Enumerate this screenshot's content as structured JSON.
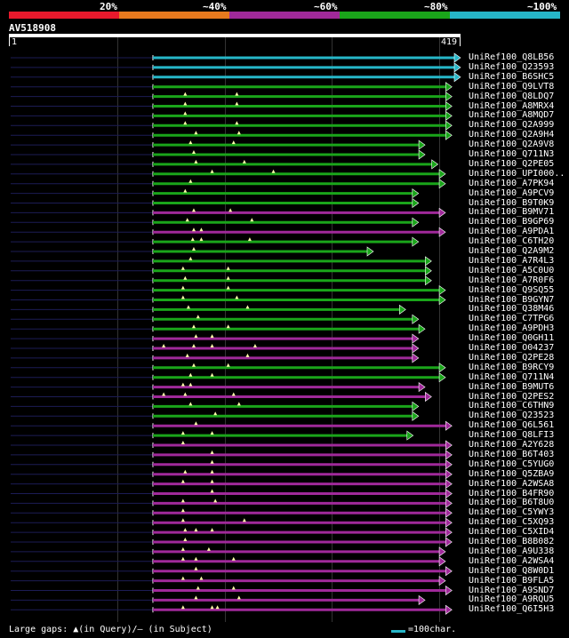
{
  "header": {
    "percent_labels": [
      "20%",
      "~40%",
      "~60%",
      "~80%",
      "~100%"
    ],
    "band_colors": [
      "#e8192c",
      "#e87a1e",
      "#a0299a",
      "#1aa51a",
      "#26b6c8"
    ]
  },
  "query": {
    "name": "AV518908",
    "start": "1",
    "end": "419",
    "length": 419
  },
  "colors": {
    "cyan": "#26b6c8",
    "green": "#1aa51a",
    "magenta": "#a0299a",
    "marker": "#ffffaa"
  },
  "hits": [
    {
      "name": "UniRef100_Q8LB56",
      "color": "cyan",
      "end": 419,
      "gaps": []
    },
    {
      "name": "UniRef100_Q23593",
      "color": "cyan",
      "end": 419,
      "gaps": []
    },
    {
      "name": "UniRef100_B6SHC5",
      "color": "cyan",
      "end": 419,
      "gaps": []
    },
    {
      "name": "UniRef100_Q9LVT8",
      "color": "green",
      "end": 411,
      "gaps": []
    },
    {
      "name": "UniRef100_Q8LDQ7",
      "color": "green",
      "end": 411,
      "gaps": [
        30,
        78
      ]
    },
    {
      "name": "UniRef100_A8MRX4",
      "color": "green",
      "end": 411,
      "gaps": [
        30,
        78
      ]
    },
    {
      "name": "UniRef100_A8MQD7",
      "color": "green",
      "end": 411,
      "gaps": [
        30
      ]
    },
    {
      "name": "UniRef100_Q2A999",
      "color": "green",
      "end": 411,
      "gaps": [
        30,
        78
      ]
    },
    {
      "name": "UniRef100_Q2A9H4",
      "color": "green",
      "end": 411,
      "gaps": [
        40,
        80
      ]
    },
    {
      "name": "UniRef100_Q2A9V8",
      "color": "green",
      "end": 386,
      "gaps": [
        35,
        75
      ]
    },
    {
      "name": "UniRef100_Q711N3",
      "color": "green",
      "end": 386,
      "gaps": [
        38
      ]
    },
    {
      "name": "UniRef100_Q2PE05",
      "color": "green",
      "end": 398,
      "gaps": [
        40,
        85
      ]
    },
    {
      "name": "UniRef100_UPI000..",
      "color": "green",
      "end": 405,
      "gaps": [
        55,
        112
      ]
    },
    {
      "name": "UniRef100_A7PK94",
      "color": "green",
      "end": 405,
      "gaps": [
        35
      ]
    },
    {
      "name": "UniRef100_A9PCV9",
      "color": "green",
      "end": 380,
      "gaps": [
        30
      ]
    },
    {
      "name": "UniRef100_B9T0K9",
      "color": "green",
      "end": 380,
      "gaps": []
    },
    {
      "name": "UniRef100_B9MV71",
      "color": "magenta",
      "end": 405,
      "gaps": [
        38,
        72
      ]
    },
    {
      "name": "UniRef100_B9GP69",
      "color": "green",
      "end": 380,
      "gaps": [
        32,
        92
      ]
    },
    {
      "name": "UniRef100_A9PDA1",
      "color": "magenta",
      "end": 405,
      "gaps": [
        38,
        45
      ]
    },
    {
      "name": "UniRef100_C6TH20",
      "color": "green",
      "end": 380,
      "gaps": [
        37,
        45,
        90
      ]
    },
    {
      "name": "UniRef100_Q2A9M2",
      "color": "green",
      "end": 338,
      "gaps": [
        38
      ]
    },
    {
      "name": "UniRef100_A7R4L3",
      "color": "green",
      "end": 392,
      "gaps": [
        35
      ]
    },
    {
      "name": "UniRef100_A5C0U0",
      "color": "green",
      "end": 392,
      "gaps": [
        28,
        70
      ]
    },
    {
      "name": "UniRef100_A7R0F6",
      "color": "green",
      "end": 392,
      "gaps": [
        30,
        70
      ]
    },
    {
      "name": "UniRef100_Q9SQ55",
      "color": "green",
      "end": 405,
      "gaps": [
        28,
        70
      ]
    },
    {
      "name": "UniRef100_B9GYN7",
      "color": "green",
      "end": 405,
      "gaps": [
        28,
        78
      ]
    },
    {
      "name": "UniRef100_Q38M46",
      "color": "green",
      "end": 368,
      "gaps": [
        33,
        88
      ]
    },
    {
      "name": "UniRef100_C7TPG6",
      "color": "green",
      "end": 380,
      "gaps": [
        42
      ]
    },
    {
      "name": "UniRef100_A9PDH3",
      "color": "green",
      "end": 386,
      "gaps": [
        38,
        70
      ]
    },
    {
      "name": "UniRef100_Q0GH11",
      "color": "magenta",
      "end": 380,
      "gaps": [
        40,
        55
      ]
    },
    {
      "name": "UniRef100_O04237",
      "color": "magenta",
      "end": 380,
      "gaps": [
        10,
        38,
        55,
        95
      ]
    },
    {
      "name": "UniRef100_Q2PE28",
      "color": "magenta",
      "end": 380,
      "gaps": [
        32,
        88
      ]
    },
    {
      "name": "UniRef100_B9RCY9",
      "color": "green",
      "end": 405,
      "gaps": [
        38,
        70
      ]
    },
    {
      "name": "UniRef100_Q711N4",
      "color": "green",
      "end": 405,
      "gaps": [
        35,
        55
      ]
    },
    {
      "name": "UniRef100_B9MUT6",
      "color": "magenta",
      "end": 386,
      "gaps": [
        28,
        35
      ]
    },
    {
      "name": "UniRef100_Q2PES2",
      "color": "magenta",
      "end": 392,
      "gaps": [
        10,
        30,
        75
      ]
    },
    {
      "name": "UniRef100_C6THN9",
      "color": "green",
      "end": 380,
      "gaps": [
        35,
        80
      ]
    },
    {
      "name": "UniRef100_Q23523",
      "color": "green",
      "end": 380,
      "gaps": [
        58
      ]
    },
    {
      "name": "UniRef100_Q6L561",
      "color": "magenta",
      "end": 411,
      "gaps": [
        40
      ]
    },
    {
      "name": "UniRef100_Q8LFI3",
      "color": "green",
      "end": 375,
      "gaps": [
        28,
        55
      ]
    },
    {
      "name": "UniRef100_A2Y628",
      "color": "magenta",
      "end": 411,
      "gaps": [
        28
      ]
    },
    {
      "name": "UniRef100_B6T403",
      "color": "magenta",
      "end": 411,
      "gaps": [
        55
      ]
    },
    {
      "name": "UniRef100_C5YUG0",
      "color": "magenta",
      "end": 411,
      "gaps": [
        55
      ]
    },
    {
      "name": "UniRef100_Q5ZBA9",
      "color": "magenta",
      "end": 411,
      "gaps": [
        30,
        55
      ]
    },
    {
      "name": "UniRef100_A2WSA8",
      "color": "magenta",
      "end": 411,
      "gaps": [
        28,
        55
      ]
    },
    {
      "name": "UniRef100_B4FR90",
      "color": "magenta",
      "end": 411,
      "gaps": [
        55
      ]
    },
    {
      "name": "UniRef100_B6T8U0",
      "color": "magenta",
      "end": 411,
      "gaps": [
        28,
        58
      ]
    },
    {
      "name": "UniRef100_C5YWY3",
      "color": "magenta",
      "end": 411,
      "gaps": [
        28
      ]
    },
    {
      "name": "UniRef100_C5XQ93",
      "color": "magenta",
      "end": 411,
      "gaps": [
        28,
        85
      ]
    },
    {
      "name": "UniRef100_C5XID4",
      "color": "magenta",
      "end": 411,
      "gaps": [
        30,
        40,
        55
      ]
    },
    {
      "name": "UniRef100_B8B082",
      "color": "magenta",
      "end": 411,
      "gaps": [
        30
      ]
    },
    {
      "name": "UniRef100_A9U338",
      "color": "magenta",
      "end": 405,
      "gaps": [
        28,
        52
      ]
    },
    {
      "name": "UniRef100_A2WSA4",
      "color": "magenta",
      "end": 405,
      "gaps": [
        28,
        40,
        75
      ]
    },
    {
      "name": "UniRef100_Q8W0D1",
      "color": "magenta",
      "end": 411,
      "gaps": [
        40
      ]
    },
    {
      "name": "UniRef100_B9FLA5",
      "color": "magenta",
      "end": 405,
      "gaps": [
        28,
        45
      ]
    },
    {
      "name": "UniRef100_A9SND7",
      "color": "magenta",
      "end": 411,
      "gaps": [
        42,
        75
      ]
    },
    {
      "name": "UniRef100_A9RQU5",
      "color": "magenta",
      "end": 386,
      "gaps": [
        40,
        80
      ]
    },
    {
      "name": "UniRef100_Q6I5H3",
      "color": "magenta",
      "end": 411,
      "gaps": [
        28,
        55,
        60
      ]
    }
  ],
  "legend": {
    "text": "Large gaps: ▲(in Query)/– (in Subject)",
    "scale_text": "=100char."
  }
}
